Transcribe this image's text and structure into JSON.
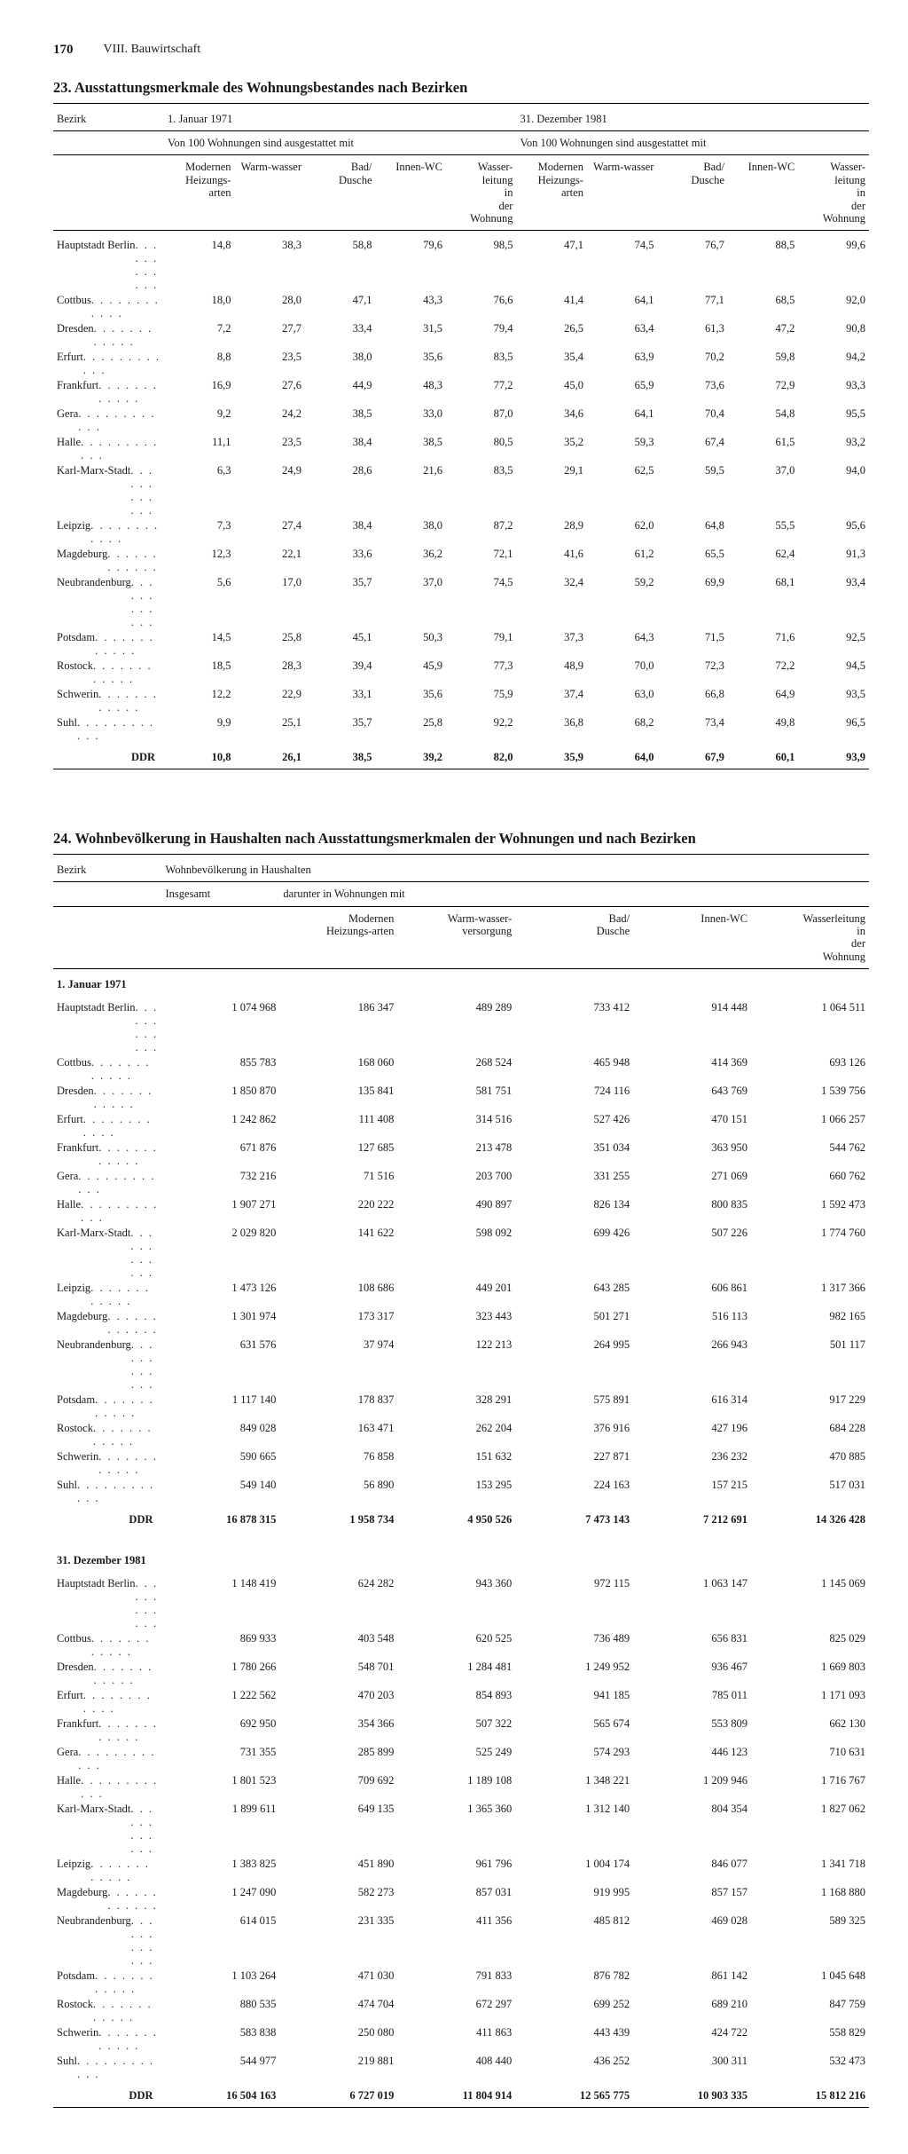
{
  "page": {
    "number": "170",
    "chapter": "VIII. Bauwirtschaft"
  },
  "table23": {
    "title": "23. Ausstattungsmerkmale des Wohnungsbestandes nach Bezirken",
    "col_bezirk": "Bezirk",
    "period1": "1. Januar 1971",
    "period2": "31. Dezember 1981",
    "subhead": "Von 100 Wohnungen sind ausgestattet mit",
    "cols": [
      "Modernen Heizungs-arten",
      "Warm-wasser",
      "Bad/ Dusche",
      "Innen-WC",
      "Wasser-leitung in der Wohnung"
    ],
    "rows": [
      {
        "name": "Hauptstadt Berlin",
        "a": [
          "14,8",
          "38,3",
          "58,8",
          "79,6",
          "98,5"
        ],
        "b": [
          "47,1",
          "74,5",
          "76,7",
          "88,5",
          "99,6"
        ]
      },
      {
        "name": "Cottbus",
        "a": [
          "18,0",
          "28,0",
          "47,1",
          "43,3",
          "76,6"
        ],
        "b": [
          "41,4",
          "64,1",
          "77,1",
          "68,5",
          "92,0"
        ]
      },
      {
        "name": "Dresden",
        "a": [
          "7,2",
          "27,7",
          "33,4",
          "31,5",
          "79,4"
        ],
        "b": [
          "26,5",
          "63,4",
          "61,3",
          "47,2",
          "90,8"
        ]
      },
      {
        "name": "Erfurt",
        "a": [
          "8,8",
          "23,5",
          "38,0",
          "35,6",
          "83,5"
        ],
        "b": [
          "35,4",
          "63,9",
          "70,2",
          "59,8",
          "94,2"
        ]
      },
      {
        "name": "Frankfurt",
        "a": [
          "16,9",
          "27,6",
          "44,9",
          "48,3",
          "77,2"
        ],
        "b": [
          "45,0",
          "65,9",
          "73,6",
          "72,9",
          "93,3"
        ]
      },
      {
        "name": "Gera",
        "a": [
          "9,2",
          "24,2",
          "38,5",
          "33,0",
          "87,0"
        ],
        "b": [
          "34,6",
          "64,1",
          "70,4",
          "54,8",
          "95,5"
        ]
      },
      {
        "name": "Halle",
        "a": [
          "11,1",
          "23,5",
          "38,4",
          "38,5",
          "80,5"
        ],
        "b": [
          "35,2",
          "59,3",
          "67,4",
          "61,5",
          "93,2"
        ]
      },
      {
        "name": "Karl-Marx-Stadt",
        "a": [
          "6,3",
          "24,9",
          "28,6",
          "21,6",
          "83,5"
        ],
        "b": [
          "29,1",
          "62,5",
          "59,5",
          "37,0",
          "94,0"
        ]
      },
      {
        "name": "Leipzig",
        "a": [
          "7,3",
          "27,4",
          "38,4",
          "38,0",
          "87,2"
        ],
        "b": [
          "28,9",
          "62,0",
          "64,8",
          "55,5",
          "95,6"
        ]
      },
      {
        "name": "Magdeburg",
        "a": [
          "12,3",
          "22,1",
          "33,6",
          "36,2",
          "72,1"
        ],
        "b": [
          "41,6",
          "61,2",
          "65,5",
          "62,4",
          "91,3"
        ]
      },
      {
        "name": "Neubrandenburg",
        "a": [
          "5,6",
          "17,0",
          "35,7",
          "37,0",
          "74,5"
        ],
        "b": [
          "32,4",
          "59,2",
          "69,9",
          "68,1",
          "93,4"
        ]
      },
      {
        "name": "Potsdam",
        "a": [
          "14,5",
          "25,8",
          "45,1",
          "50,3",
          "79,1"
        ],
        "b": [
          "37,3",
          "64,3",
          "71,5",
          "71,6",
          "92,5"
        ]
      },
      {
        "name": "Rostock",
        "a": [
          "18,5",
          "28,3",
          "39,4",
          "45,9",
          "77,3"
        ],
        "b": [
          "48,9",
          "70,0",
          "72,3",
          "72,2",
          "94,5"
        ]
      },
      {
        "name": "Schwerin",
        "a": [
          "12,2",
          "22,9",
          "33,1",
          "35,6",
          "75,9"
        ],
        "b": [
          "37,4",
          "63,0",
          "66,8",
          "64,9",
          "93,5"
        ]
      },
      {
        "name": "Suhl",
        "a": [
          "9,9",
          "25,1",
          "35,7",
          "25,8",
          "92,2"
        ],
        "b": [
          "36,8",
          "68,2",
          "73,4",
          "49,8",
          "96,5"
        ]
      }
    ],
    "total": {
      "name": "DDR",
      "a": [
        "10,8",
        "26,1",
        "38,5",
        "39,2",
        "82,0"
      ],
      "b": [
        "35,9",
        "64,0",
        "67,9",
        "60,1",
        "93,9"
      ]
    }
  },
  "table24": {
    "title": "24. Wohnbevölkerung in Haushalten nach Ausstattungsmerkmalen der Wohnungen und nach Bezirken",
    "col_bezirk": "Bezirk",
    "grouphead": "Wohnbevölkerung in Haushalten",
    "col_insg": "Insgesamt",
    "col_darunter": "darunter in Wohnungen mit",
    "cols": [
      "Modernen Heizungs-arten",
      "Warm-wasser-versorgung",
      "Bad/ Dusche",
      "Innen-WC",
      "Wasserleitung in der Wohnung"
    ],
    "sec1": "1. Januar 1971",
    "sec2": "31. Dezember 1981",
    "rows1": [
      {
        "name": "Hauptstadt Berlin",
        "v": [
          "1 074 968",
          "186 347",
          "489 289",
          "733 412",
          "914 448",
          "1 064 511"
        ]
      },
      {
        "name": "Cottbus",
        "v": [
          "855 783",
          "168 060",
          "268 524",
          "465 948",
          "414 369",
          "693 126"
        ]
      },
      {
        "name": "Dresden",
        "v": [
          "1 850 870",
          "135 841",
          "581 751",
          "724 116",
          "643 769",
          "1 539 756"
        ]
      },
      {
        "name": "Erfurt",
        "v": [
          "1 242 862",
          "111 408",
          "314 516",
          "527 426",
          "470 151",
          "1 066 257"
        ]
      },
      {
        "name": "Frankfurt",
        "v": [
          "671 876",
          "127 685",
          "213 478",
          "351 034",
          "363 950",
          "544 762"
        ]
      },
      {
        "name": "Gera",
        "v": [
          "732 216",
          "71 516",
          "203 700",
          "331 255",
          "271 069",
          "660 762"
        ]
      },
      {
        "name": "Halle",
        "v": [
          "1 907 271",
          "220 222",
          "490 897",
          "826 134",
          "800 835",
          "1 592 473"
        ]
      },
      {
        "name": "Karl-Marx-Stadt",
        "v": [
          "2 029 820",
          "141 622",
          "598 092",
          "699 426",
          "507 226",
          "1 774 760"
        ]
      },
      {
        "name": "Leipzig",
        "v": [
          "1 473 126",
          "108 686",
          "449 201",
          "643 285",
          "606 861",
          "1 317 366"
        ]
      },
      {
        "name": "Magdeburg",
        "v": [
          "1 301 974",
          "173 317",
          "323 443",
          "501 271",
          "516 113",
          "982 165"
        ]
      },
      {
        "name": "Neubrandenburg",
        "v": [
          "631 576",
          "37 974",
          "122 213",
          "264 995",
          "266 943",
          "501 117"
        ]
      },
      {
        "name": "Potsdam",
        "v": [
          "1 117 140",
          "178 837",
          "328 291",
          "575 891",
          "616 314",
          "917 229"
        ]
      },
      {
        "name": "Rostock",
        "v": [
          "849 028",
          "163 471",
          "262 204",
          "376 916",
          "427 196",
          "684 228"
        ]
      },
      {
        "name": "Schwerin",
        "v": [
          "590 665",
          "76 858",
          "151 632",
          "227 871",
          "236 232",
          "470 885"
        ]
      },
      {
        "name": "Suhl",
        "v": [
          "549 140",
          "56 890",
          "153 295",
          "224 163",
          "157 215",
          "517 031"
        ]
      }
    ],
    "total1": {
      "name": "DDR",
      "v": [
        "16 878 315",
        "1 958 734",
        "4 950 526",
        "7 473 143",
        "7 212 691",
        "14 326 428"
      ]
    },
    "rows2": [
      {
        "name": "Hauptstadt Berlin",
        "v": [
          "1 148 419",
          "624 282",
          "943 360",
          "972 115",
          "1 063 147",
          "1 145 069"
        ]
      },
      {
        "name": "Cottbus",
        "v": [
          "869 933",
          "403 548",
          "620 525",
          "736 489",
          "656 831",
          "825 029"
        ]
      },
      {
        "name": "Dresden",
        "v": [
          "1 780 266",
          "548 701",
          "1 284 481",
          "1 249 952",
          "936 467",
          "1 669 803"
        ]
      },
      {
        "name": "Erfurt",
        "v": [
          "1 222 562",
          "470 203",
          "854 893",
          "941 185",
          "785 011",
          "1 171 093"
        ]
      },
      {
        "name": "Frankfurt",
        "v": [
          "692 950",
          "354 366",
          "507 322",
          "565 674",
          "553 809",
          "662 130"
        ]
      },
      {
        "name": "Gera",
        "v": [
          "731 355",
          "285 899",
          "525 249",
          "574 293",
          "446 123",
          "710 631"
        ]
      },
      {
        "name": "Halle",
        "v": [
          "1 801 523",
          "709 692",
          "1 189 108",
          "1 348 221",
          "1 209 946",
          "1 716 767"
        ]
      },
      {
        "name": "Karl-Marx-Stadt",
        "v": [
          "1 899 611",
          "649 135",
          "1 365 360",
          "1 312 140",
          "804 354",
          "1 827 062"
        ]
      },
      {
        "name": "Leipzig",
        "v": [
          "1 383 825",
          "451 890",
          "961 796",
          "1 004 174",
          "846 077",
          "1 341 718"
        ]
      },
      {
        "name": "Magdeburg",
        "v": [
          "1 247 090",
          "582 273",
          "857 031",
          "919 995",
          "857 157",
          "1 168 880"
        ]
      },
      {
        "name": "Neubrandenburg",
        "v": [
          "614 015",
          "231 335",
          "411 356",
          "485 812",
          "469 028",
          "589 325"
        ]
      },
      {
        "name": "Potsdam",
        "v": [
          "1 103 264",
          "471 030",
          "791 833",
          "876 782",
          "861 142",
          "1 045 648"
        ]
      },
      {
        "name": "Rostock",
        "v": [
          "880 535",
          "474 704",
          "672 297",
          "699 252",
          "689 210",
          "847 759"
        ]
      },
      {
        "name": "Schwerin",
        "v": [
          "583 838",
          "250 080",
          "411 863",
          "443 439",
          "424 722",
          "558 829"
        ]
      },
      {
        "name": "Suhl",
        "v": [
          "544 977",
          "219 881",
          "408 440",
          "436 252",
          "300 311",
          "532 473"
        ]
      }
    ],
    "total2": {
      "name": "DDR",
      "v": [
        "16 504 163",
        "6 727 019",
        "11 804 914",
        "12 565 775",
        "10 903 335",
        "15 812 216"
      ]
    }
  }
}
